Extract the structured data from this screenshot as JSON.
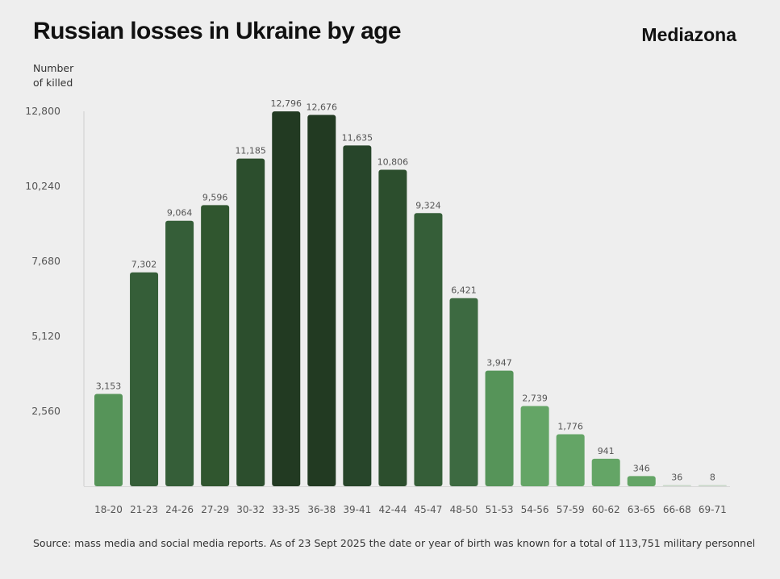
{
  "title": "Russian losses in Ukraine by age",
  "brand": "Mediazona",
  "source": "Source: mass media and social media reports. As of 23 Sept 2025 the date or year of birth was known for a total of 113,751 military personnel",
  "chart_data": {
    "type": "bar",
    "ylabel": "Number of killed",
    "ylabel_lines": [
      "Number",
      "of killed"
    ],
    "xlabel": "",
    "ylim": [
      0,
      12800
    ],
    "yticks": [
      2560,
      5120,
      7680,
      10240,
      12800
    ],
    "ytick_labels": [
      "2,560",
      "5,120",
      "7,680",
      "10,240",
      "12,800"
    ],
    "grid": false,
    "categories": [
      "18-20",
      "21-23",
      "24-26",
      "27-29",
      "30-32",
      "33-35",
      "36-38",
      "39-41",
      "42-44",
      "45-47",
      "48-50",
      "51-53",
      "54-56",
      "57-59",
      "60-62",
      "63-65",
      "66-68",
      "69-71"
    ],
    "values": [
      3153,
      7302,
      9064,
      9596,
      11185,
      12796,
      12676,
      11635,
      10806,
      9324,
      6421,
      3947,
      2739,
      1776,
      941,
      346,
      36,
      8
    ],
    "value_labels": [
      "3,153",
      "7,302",
      "9,064",
      "9,596",
      "11,185",
      "12,796",
      "12,676",
      "11,635",
      "10,806",
      "9,324",
      "6,421",
      "3,947",
      "2,739",
      "1,776",
      "941",
      "346",
      "36",
      "8"
    ],
    "colors": {
      "lightest": "#64a566",
      "light": "#569459",
      "mid": "#3d6a41",
      "dark": "#2c4e2d",
      "darkest": "#223a22",
      "faint": "#c8d8c8"
    }
  }
}
